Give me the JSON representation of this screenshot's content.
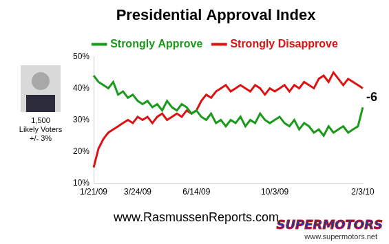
{
  "chart_data": {
    "type": "line",
    "title": "Presidential Approval Index",
    "legend": "top",
    "grid": false,
    "categories": [
      "1/21/09",
      null,
      null,
      null,
      null,
      null,
      null,
      null,
      null,
      "3/24/09",
      null,
      null,
      null,
      null,
      null,
      null,
      null,
      null,
      null,
      null,
      null,
      "6/14/09",
      null,
      null,
      null,
      null,
      null,
      null,
      null,
      null,
      null,
      null,
      null,
      null,
      null,
      null,
      null,
      "10/3/09",
      null,
      null,
      null,
      null,
      null,
      null,
      null,
      null,
      null,
      null,
      null,
      null,
      null,
      null,
      null,
      null,
      null,
      "2/3/10"
    ],
    "series": [
      {
        "name": "Strongly Approve",
        "color": "#1a9a1a",
        "values": [
          44,
          42,
          41,
          40,
          42,
          38,
          39,
          37,
          38,
          36,
          35,
          36,
          34,
          35,
          33,
          36,
          34,
          33,
          35,
          34,
          32,
          33,
          31,
          30,
          32,
          29,
          30,
          28,
          30,
          29,
          31,
          28,
          30,
          29,
          32,
          30,
          29,
          30,
          31,
          29,
          28,
          30,
          27,
          29,
          28,
          26,
          27,
          25,
          28,
          26,
          27,
          28,
          26,
          27,
          28,
          34
        ]
      },
      {
        "name": "Strongly Disapprove",
        "color": "#dd1111",
        "values": [
          15,
          21,
          24,
          26,
          27,
          28,
          29,
          30,
          29,
          31,
          30,
          31,
          29,
          31,
          32,
          30,
          31,
          32,
          31,
          33,
          32,
          33,
          36,
          38,
          37,
          39,
          40,
          41,
          39,
          40,
          41,
          40,
          39,
          41,
          40,
          38,
          40,
          39,
          40,
          41,
          39,
          41,
          40,
          42,
          41,
          40,
          43,
          44,
          42,
          45,
          43,
          41,
          43,
          42,
          41,
          40
        ]
      }
    ],
    "ylim": [
      10,
      50
    ],
    "yticks": [
      {
        "value": 10,
        "label": "10%"
      },
      {
        "value": 20,
        "label": "20%"
      },
      {
        "value": 30,
        "label": "30%"
      },
      {
        "value": 40,
        "label": "40%"
      },
      {
        "value": 50,
        "label": "50%"
      }
    ],
    "annotations": [
      "-6"
    ],
    "note": [
      "1,500",
      "Likely Voters",
      "+/- 3%"
    ],
    "source": "www.RasmussenReports.com",
    "watermark": [
      "SUPERMOTORS",
      "www.supermotors.net"
    ]
  }
}
